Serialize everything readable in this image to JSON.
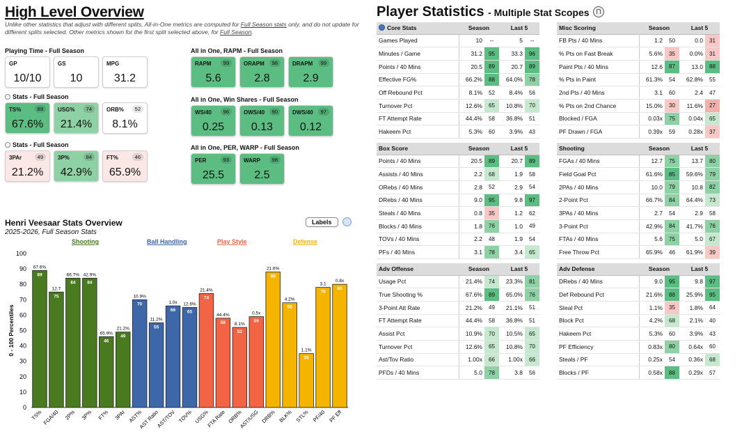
{
  "left": {
    "title": "High Level Overview",
    "note_parts": [
      "Unlike other statistics that adjust with different splits, All-in-One metrics are computed for ",
      "Full Season stats",
      " only, and do not update for different splits selected. Other metrics shown for the first split selected above, for ",
      "Full Season",
      "."
    ],
    "groups": [
      {
        "title": "Playing Time - Full Season",
        "cards": [
          {
            "label": "GP",
            "value": "10/10",
            "pct": ""
          },
          {
            "label": "GS",
            "value": "10",
            "pct": ""
          },
          {
            "label": "MPG",
            "value": "31.2",
            "pct": ""
          }
        ]
      },
      {
        "title": "Stats - Full Season",
        "cards": [
          {
            "label": "TS%",
            "value": "67.6%",
            "pct": "89"
          },
          {
            "label": "USG%",
            "value": "21.4%",
            "pct": "74"
          },
          {
            "label": "ORB%",
            "value": "8.1%",
            "pct": "52"
          }
        ]
      },
      {
        "title": "Stats - Full Season",
        "cards": [
          {
            "label": "3PAr",
            "value": "21.2%",
            "pct": "49"
          },
          {
            "label": "3P%",
            "value": "42.9%",
            "pct": "84"
          },
          {
            "label": "FT%",
            "value": "65.9%",
            "pct": "46"
          }
        ]
      },
      {
        "title": "All in One, RAPM - Full Season",
        "cards": [
          {
            "label": "RAPM",
            "value": "5.6",
            "pct": "99"
          },
          {
            "label": "ORAPM",
            "value": "2.8",
            "pct": "98"
          },
          {
            "label": "DRAPM",
            "value": "2.9",
            "pct": "99"
          }
        ]
      },
      {
        "title": "All in One, Win Shares - Full Season",
        "cards": [
          {
            "label": "WS/40",
            "value": "0.25",
            "pct": "96"
          },
          {
            "label": "OWS/40",
            "value": "0.13",
            "pct": "90"
          },
          {
            "label": "DWS/40",
            "value": "0.12",
            "pct": "97"
          }
        ]
      },
      {
        "title": "All in One, PER, WARP - Full Season",
        "cards": [
          {
            "label": "PER",
            "value": "25.5",
            "pct": "93"
          },
          {
            "label": "WARP",
            "value": "2.5",
            "pct": "98"
          }
        ]
      }
    ]
  },
  "chart": {
    "title": "Henri Veesaar Stats Overview",
    "subtitle": "2025-2026, Full Season Stats",
    "labels_button": "Labels",
    "ylabel": "0 - 100 Percentiles",
    "categories": [
      {
        "name": "Shooting",
        "color": "#4a7a1f"
      },
      {
        "name": "Ball Handling",
        "color": "#3d67a8"
      },
      {
        "name": "Play Style",
        "color": "#f26444"
      },
      {
        "name": "Defense",
        "color": "#f4b400"
      }
    ]
  },
  "chart_data": {
    "type": "bar",
    "ylim": [
      0,
      100
    ],
    "yticks": [
      0,
      10,
      20,
      30,
      40,
      50,
      60,
      70,
      80,
      90,
      100
    ],
    "bars": [
      {
        "x": "TS%",
        "value": 89,
        "stat": "67.6%",
        "group": 0
      },
      {
        "x": "FGA/40",
        "value": 75,
        "stat": "12.7",
        "group": 0
      },
      {
        "x": "2P%",
        "value": 84,
        "stat": "66.7%",
        "group": 0
      },
      {
        "x": "3P%",
        "value": 84,
        "stat": "42.9%",
        "group": 0
      },
      {
        "x": "FT%",
        "value": 46,
        "stat": "65.9%",
        "group": 0
      },
      {
        "x": "3PAr",
        "value": 49,
        "stat": "21.2%",
        "group": 0
      },
      {
        "x": "AST%",
        "value": 70,
        "stat": "10.9%",
        "group": 1
      },
      {
        "x": "AST Ratio",
        "value": 55,
        "stat": "11.2%",
        "group": 1
      },
      {
        "x": "AST/TOV",
        "value": 66,
        "stat": "1.0x",
        "group": 1
      },
      {
        "x": "TOV%",
        "value": 65,
        "stat": "12.6%",
        "group": 1
      },
      {
        "x": "USG%",
        "value": 74,
        "stat": "21.4%",
        "group": 2
      },
      {
        "x": "FTA Rate",
        "value": 58,
        "stat": "44.4%",
        "group": 2
      },
      {
        "x": "ORB%",
        "value": 52,
        "stat": "8.1%",
        "group": 2
      },
      {
        "x": "AST/USG",
        "value": 59,
        "stat": "0.5x",
        "group": 2
      },
      {
        "x": "DRB%",
        "value": 88,
        "stat": "21.6%",
        "group": 3
      },
      {
        "x": "BLK%",
        "value": 68,
        "stat": "4.2%",
        "group": 3
      },
      {
        "x": "STL%",
        "value": 35,
        "stat": "1.1%",
        "group": 3
      },
      {
        "x": "PF/40",
        "value": 78,
        "stat": "3.1",
        "group": 3
      },
      {
        "x": "PF Eff",
        "value": 80,
        "stat": "0.8x",
        "group": 3
      }
    ]
  },
  "right": {
    "title": "Player Statistics",
    "subtitle": "- Multiple Stat Scopes",
    "tables": [
      {
        "title": "Core Stats",
        "icon": true,
        "rows": [
          [
            "Games Played",
            "10",
            "--",
            "5",
            "--"
          ],
          [
            "Minutes / Game",
            "31.2",
            "95",
            "33.3",
            "96"
          ],
          [
            "Points / 40 Mins",
            "20.5",
            "89",
            "20.7",
            "89"
          ],
          [
            "Effective FG%",
            "66.2%",
            "88",
            "64.0%",
            "78"
          ],
          [
            "Off Rebound Pct",
            "8.1%",
            "52",
            "8.4%",
            "56"
          ],
          [
            "Turnover Pct",
            "12.6%",
            "65",
            "10.8%",
            "70"
          ],
          [
            "FT Attempt Rate",
            "44.4%",
            "58",
            "36.8%",
            "51"
          ],
          [
            "Hakeem Pct",
            "5.3%",
            "60",
            "3.9%",
            "43"
          ]
        ]
      },
      {
        "title": "Misc Scoring",
        "rows": [
          [
            "FB Pts / 40 Mins",
            "1.2",
            "50",
            "0.0",
            "31"
          ],
          [
            "% Pts on Fast Break",
            "5.6%",
            "35",
            "0.0%",
            "31"
          ],
          [
            "Paint Pts / 40 Mins",
            "12.6",
            "87",
            "13.0",
            "88"
          ],
          [
            "% Pts in Paint",
            "61.3%",
            "54",
            "62.8%",
            "55"
          ],
          [
            "2nd Pts / 40 Mins",
            "3.1",
            "60",
            "2.4",
            "47"
          ],
          [
            "% Pts on 2nd Chance",
            "15.0%",
            "30",
            "11.6%",
            "27"
          ],
          [
            "Blocked / FGA",
            "0.03x",
            "75",
            "0.04x",
            "65"
          ],
          [
            "PF Drawn / FGA",
            "0.39x",
            "59",
            "0.28x",
            "37"
          ]
        ]
      },
      {
        "title": "Box Score",
        "rows": [
          [
            "Points / 40 Mins",
            "20.5",
            "89",
            "20.7",
            "89"
          ],
          [
            "Assists / 40 Mins",
            "2.2",
            "68",
            "1.9",
            "58"
          ],
          [
            "ORebs / 40 Mins",
            "2.8",
            "52",
            "2.9",
            "54"
          ],
          [
            "DRebs / 40 Mins",
            "9.0",
            "95",
            "9.8",
            "97"
          ],
          [
            "Steals / 40 Mins",
            "0.8",
            "35",
            "1.2",
            "62"
          ],
          [
            "Blocks / 40 Mins",
            "1.8",
            "76",
            "1.0",
            "49"
          ],
          [
            "TOVs / 40 Mins",
            "2.2",
            "48",
            "1.9",
            "54"
          ],
          [
            "PFs / 40 Mins",
            "3.1",
            "78",
            "3.4",
            "65"
          ]
        ]
      },
      {
        "title": "Shooting",
        "rows": [
          [
            "FGAs / 40 Mins",
            "12.7",
            "75",
            "13.7",
            "80"
          ],
          [
            "Field Goal Pct",
            "61.6%",
            "85",
            "59.6%",
            "79"
          ],
          [
            "2PAs / 40 Mins",
            "10.0",
            "79",
            "10.8",
            "82"
          ],
          [
            "2-Point Pct",
            "66.7%",
            "84",
            "64.4%",
            "73"
          ],
          [
            "3PAs / 40 Mins",
            "2.7",
            "54",
            "2.9",
            "58"
          ],
          [
            "3-Point Pct",
            "42.9%",
            "84",
            "41.7%",
            "76"
          ],
          [
            "FTAs / 40 Mins",
            "5.6",
            "75",
            "5.0",
            "67"
          ],
          [
            "Free Throw Pct",
            "65.9%",
            "46",
            "61.9%",
            "39"
          ]
        ]
      },
      {
        "title": "Adv Offense",
        "rows": [
          [
            "Usage Pct",
            "21.4%",
            "74",
            "23.3%",
            "81"
          ],
          [
            "True Shooting %",
            "67.6%",
            "89",
            "65.0%",
            "76"
          ],
          [
            "3-Point Att Rate",
            "21.2%",
            "49",
            "21.1%",
            "51"
          ],
          [
            "FT Attempt Rate",
            "44.4%",
            "58",
            "36.8%",
            "51"
          ],
          [
            "Assist Pct",
            "10.9%",
            "70",
            "10.5%",
            "65"
          ],
          [
            "Turnover Pct",
            "12.6%",
            "65",
            "10.8%",
            "70"
          ],
          [
            "Ast/Tov Ratio",
            "1.00x",
            "66",
            "1.00x",
            "66"
          ],
          [
            "PFDs / 40 Mins",
            "5.0",
            "78",
            "3.8",
            "56"
          ]
        ]
      },
      {
        "title": "Adv Defense",
        "rows": [
          [
            "DRebs / 40 Mins",
            "9.0",
            "95",
            "9.8",
            "97"
          ],
          [
            "Def Rebound Pct",
            "21.6%",
            "88",
            "25.9%",
            "95"
          ],
          [
            "Steal Pct",
            "1.1%",
            "35",
            "1.8%",
            "64"
          ],
          [
            "Block Pct",
            "4.2%",
            "68",
            "2.1%",
            "40"
          ],
          [
            "Hakeem Pct",
            "5.3%",
            "60",
            "3.9%",
            "43"
          ],
          [
            "PF Efficiency",
            "0.83x",
            "80",
            "0.64x",
            "60"
          ],
          [
            "Steals / PF",
            "0.25x",
            "54",
            "0.36x",
            "68"
          ],
          [
            "Blocks / PF",
            "0.58x",
            "88",
            "0.29x",
            "57"
          ]
        ]
      }
    ],
    "col_headers": [
      "Season",
      "Last 5"
    ]
  }
}
